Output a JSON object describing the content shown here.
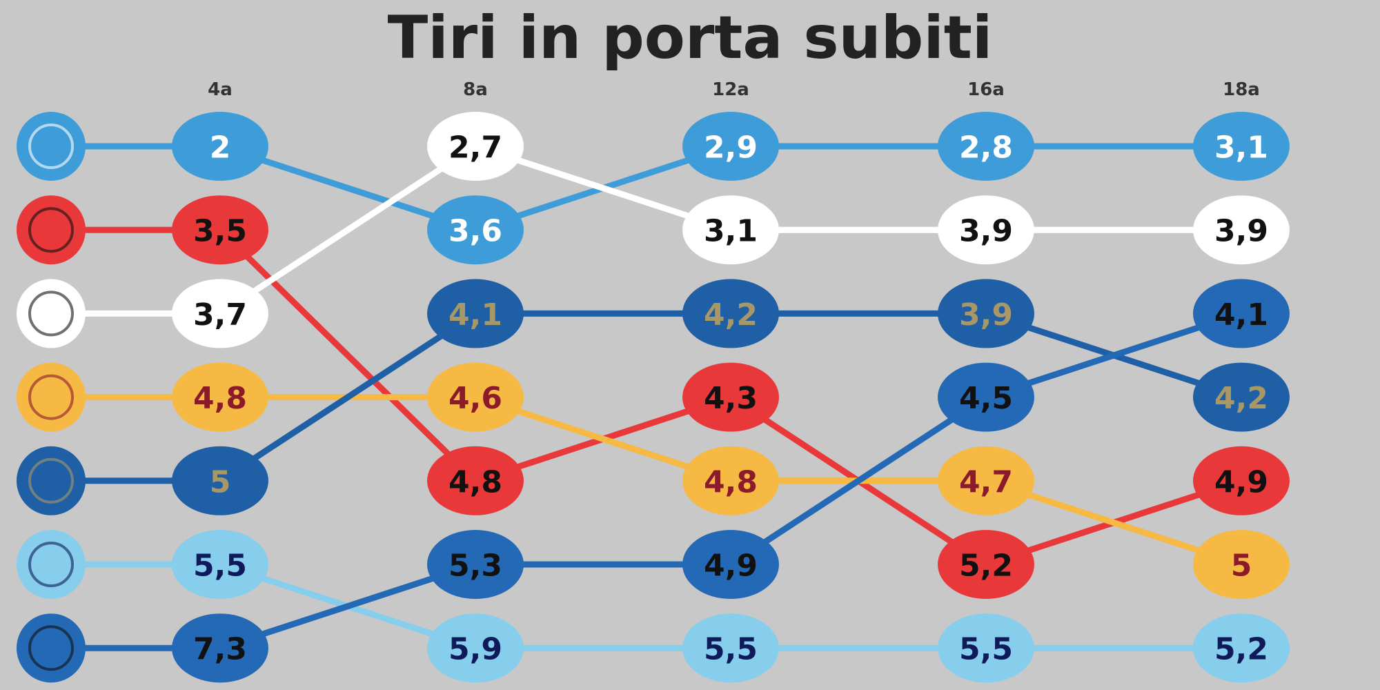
{
  "chart_data": {
    "type": "bump",
    "title": "Tiri in porta subiti",
    "categories": [
      "4a",
      "8a",
      "12a",
      "16a",
      "18a"
    ],
    "series": [
      {
        "color": "#3e9dd8",
        "label_color": "#ffffff",
        "values": [
          2,
          3.6,
          2.9,
          2.8,
          3.1
        ],
        "value_labels": [
          "2",
          "3,6",
          "2,9",
          "2,8",
          "3,1"
        ]
      },
      {
        "color": "#e8383a",
        "label_color": "#111111",
        "values": [
          3.5,
          4.8,
          4.3,
          5.2,
          4.9
        ],
        "value_labels": [
          "3,5",
          "4,8",
          "4,3",
          "5,2",
          "4,9"
        ]
      },
      {
        "color": "#ffffff",
        "label_color": "#111111",
        "values": [
          3.7,
          2.7,
          3.1,
          3.9,
          3.9
        ],
        "value_labels": [
          "3,7",
          "2,7",
          "3,1",
          "3,9",
          "3,9"
        ]
      },
      {
        "color": "#f6b944",
        "label_color": "#8b1a2b",
        "values": [
          4.8,
          4.6,
          4.8,
          4.7,
          5
        ],
        "value_labels": [
          "4,8",
          "4,6",
          "4,8",
          "4,7",
          "5"
        ]
      },
      {
        "color": "#1f5fa6",
        "label_color": "#a89868",
        "values": [
          5,
          4.1,
          4.2,
          3.9,
          4.2
        ],
        "value_labels": [
          "5",
          "4,1",
          "4,2",
          "3,9",
          "4,2"
        ]
      },
      {
        "color": "#87cdec",
        "label_color": "#0e1a5a",
        "values": [
          5.5,
          5.9,
          5.5,
          5.5,
          5.2
        ],
        "value_labels": [
          "5,5",
          "5,9",
          "5,5",
          "5,5",
          "5,2"
        ]
      },
      {
        "color": "#2369b5",
        "label_color": "#111111",
        "values": [
          7.3,
          5.3,
          4.9,
          4.5,
          4.1
        ],
        "value_labels": [
          "7,3",
          "5,3",
          "4,9",
          "4,5",
          "4,1"
        ]
      }
    ]
  }
}
